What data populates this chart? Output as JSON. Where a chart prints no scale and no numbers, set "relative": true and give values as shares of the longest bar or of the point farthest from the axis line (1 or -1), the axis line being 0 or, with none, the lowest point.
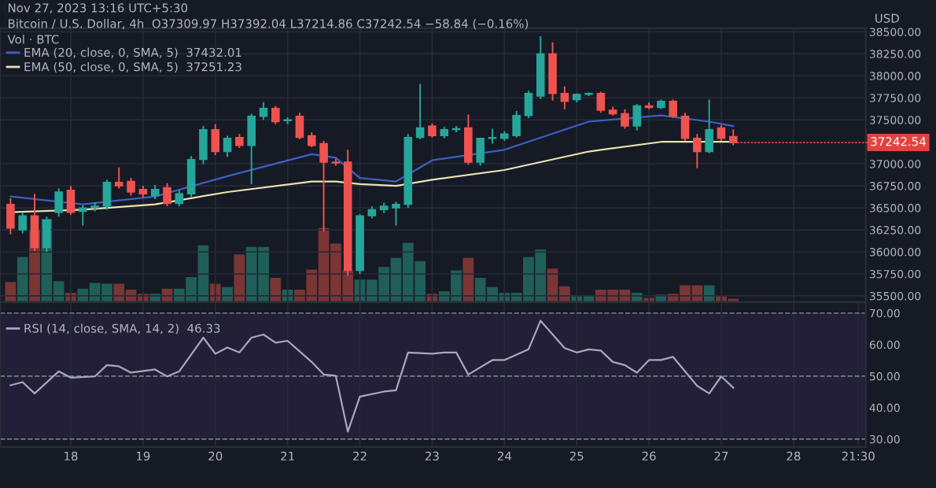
{
  "chart_data": [
    {
      "type": "candlestick",
      "ylabel": "USD",
      "tick_labels": "y",
      "grid": true,
      "legend": "top left",
      "annotations": [
        "Nov 27, 2023 13:16 UTC+5:30",
        "Bitcoin / U.S. Dollar, 4h  O37309.97 H37392.04 L37214.86 C37242.54 −58.84 (−0.16%)",
        "Vol · BTC",
        {
          "text": "37242.54",
          "x": "2023-11-27T04:00",
          "y": 37242.54
        }
      ],
      "xlim": [
        "2023-11-17T00:30",
        "2023-11-29T00:00"
      ],
      "xticks": [
        {
          "value": "2023-11-18",
          "label": null
        },
        {
          "value": "2023-11-19",
          "label": null
        },
        {
          "value": "2023-11-20",
          "label": null
        },
        {
          "value": "2023-11-21",
          "label": null
        },
        {
          "value": "2023-11-22",
          "label": null
        },
        {
          "value": "2023-11-23",
          "label": null
        },
        {
          "value": "2023-11-24",
          "label": null
        },
        {
          "value": "2023-11-25",
          "label": null
        },
        {
          "value": "2023-11-26",
          "label": null
        },
        {
          "value": "2023-11-27",
          "label": null
        },
        {
          "value": "2023-11-28",
          "label": null
        }
      ],
      "ylim": [
        35430,
        38540
      ],
      "yticks": [
        {
          "value": 35500,
          "label": "35500.00"
        },
        {
          "value": 35750,
          "label": "35750.00"
        },
        {
          "value": 36000,
          "label": "36000.00"
        },
        {
          "value": 36250,
          "label": "36250.00"
        },
        {
          "value": 36500,
          "label": "36500.00"
        },
        {
          "value": 36750,
          "label": "36750.00"
        },
        {
          "value": 37000,
          "label": "37000.00"
        },
        {
          "value": 37500,
          "label": "37500.00"
        },
        {
          "value": 37750,
          "label": "37750.00"
        },
        {
          "value": 38000,
          "label": "38000.00"
        },
        {
          "value": 38250,
          "label": "38250.00"
        },
        {
          "value": 38500,
          "label": "38500.00"
        }
      ],
      "x": [
        "2023-11-17T04:00",
        "2023-11-17T08:00",
        "2023-11-17T12:00",
        "2023-11-17T16:00",
        "2023-11-17T20:00",
        "2023-11-18T00:00",
        "2023-11-18T04:00",
        "2023-11-18T08:00",
        "2023-11-18T12:00",
        "2023-11-18T16:00",
        "2023-11-18T20:00",
        "2023-11-19T00:00",
        "2023-11-19T04:00",
        "2023-11-19T08:00",
        "2023-11-19T12:00",
        "2023-11-19T16:00",
        "2023-11-19T20:00",
        "2023-11-20T00:00",
        "2023-11-20T04:00",
        "2023-11-20T08:00",
        "2023-11-20T12:00",
        "2023-11-20T16:00",
        "2023-11-20T20:00",
        "2023-11-21T00:00",
        "2023-11-21T04:00",
        "2023-11-21T08:00",
        "2023-11-21T12:00",
        "2023-11-21T16:00",
        "2023-11-21T20:00",
        "2023-11-22T00:00",
        "2023-11-22T04:00",
        "2023-11-22T08:00",
        "2023-11-22T12:00",
        "2023-11-22T16:00",
        "2023-11-22T20:00",
        "2023-11-23T00:00",
        "2023-11-23T04:00",
        "2023-11-23T08:00",
        "2023-11-23T12:00",
        "2023-11-23T16:00",
        "2023-11-23T20:00",
        "2023-11-24T00:00",
        "2023-11-24T04:00",
        "2023-11-24T08:00",
        "2023-11-24T12:00",
        "2023-11-24T16:00",
        "2023-11-24T20:00",
        "2023-11-25T00:00",
        "2023-11-25T04:00",
        "2023-11-25T08:00",
        "2023-11-25T12:00",
        "2023-11-25T16:00",
        "2023-11-25T20:00",
        "2023-11-26T00:00",
        "2023-11-26T04:00",
        "2023-11-26T08:00",
        "2023-11-26T12:00",
        "2023-11-26T16:00",
        "2023-11-26T20:00",
        "2023-11-27T00:00",
        "2023-11-27T04:00"
      ],
      "ohlc": [
        [
          36540,
          36610,
          36200,
          36270
        ],
        [
          36250,
          36450,
          36210,
          36410
        ],
        [
          36410,
          36660,
          36010,
          36050
        ],
        [
          36050,
          36400,
          36000,
          36360
        ],
        [
          36450,
          36720,
          36400,
          36680
        ],
        [
          36700,
          36750,
          36420,
          36450
        ],
        [
          36460,
          36530,
          36300,
          36500
        ],
        [
          36500,
          36560,
          36460,
          36520
        ],
        [
          36520,
          36820,
          36480,
          36790
        ],
        [
          36790,
          36960,
          36720,
          36750
        ],
        [
          36800,
          36840,
          36640,
          36680
        ],
        [
          36710,
          36750,
          36620,
          36660
        ],
        [
          36640,
          36760,
          36600,
          36710
        ],
        [
          36730,
          36780,
          36520,
          36550
        ],
        [
          36550,
          36700,
          36520,
          36660
        ],
        [
          36660,
          37090,
          36620,
          37050
        ],
        [
          37050,
          37430,
          37000,
          37390
        ],
        [
          37390,
          37450,
          37100,
          37140
        ],
        [
          37140,
          37320,
          37080,
          37290
        ],
        [
          37300,
          37340,
          37180,
          37210
        ],
        [
          37210,
          37570,
          36770,
          37540
        ],
        [
          37540,
          37700,
          37500,
          37630
        ],
        [
          37630,
          37660,
          37450,
          37480
        ],
        [
          37490,
          37530,
          37450,
          37500
        ],
        [
          37540,
          37580,
          37280,
          37300
        ],
        [
          37320,
          37360,
          37190,
          37210
        ],
        [
          37230,
          37260,
          36230,
          37020
        ],
        [
          37020,
          37060,
          36980,
          37010
        ],
        [
          37020,
          37160,
          35730,
          35790
        ],
        [
          35790,
          36430,
          35750,
          36410
        ],
        [
          36410,
          36520,
          36380,
          36480
        ],
        [
          36480,
          36560,
          36440,
          36520
        ],
        [
          36500,
          36570,
          36300,
          36540
        ],
        [
          36540,
          37340,
          36500,
          37300
        ],
        [
          37300,
          37910,
          37280,
          37410
        ],
        [
          37430,
          37460,
          37300,
          37320
        ],
        [
          37320,
          37420,
          37290,
          37390
        ],
        [
          37390,
          37430,
          37360,
          37400
        ],
        [
          37410,
          37560,
          36990,
          37020
        ],
        [
          37020,
          37300,
          36980,
          37290
        ],
        [
          37290,
          37400,
          37230,
          37300
        ],
        [
          37290,
          37370,
          37260,
          37340
        ],
        [
          37320,
          37600,
          37300,
          37550
        ],
        [
          37550,
          37830,
          37520,
          37800
        ],
        [
          37770,
          38450,
          37740,
          38250
        ],
        [
          38250,
          38380,
          37720,
          37800
        ],
        [
          37800,
          37880,
          37620,
          37710
        ],
        [
          37730,
          37800,
          37700,
          37790
        ],
        [
          37790,
          37810,
          37770,
          37800
        ],
        [
          37800,
          37820,
          37580,
          37610
        ],
        [
          37610,
          37650,
          37550,
          37570
        ],
        [
          37570,
          37620,
          37400,
          37430
        ],
        [
          37430,
          37680,
          37380,
          37660
        ],
        [
          37660,
          37700,
          37620,
          37640
        ],
        [
          37640,
          37730,
          37620,
          37710
        ],
        [
          37710,
          37730,
          37520,
          37540
        ],
        [
          37540,
          37580,
          37260,
          37290
        ],
        [
          37290,
          37340,
          36950,
          37140
        ],
        [
          37140,
          37730,
          37120,
          37390
        ],
        [
          37410,
          37440,
          37260,
          37290
        ],
        [
          37310,
          37390,
          37210,
          37240
        ]
      ],
      "colors": [
        "#ef5350",
        "#26a69a",
        "#ef5350",
        "#26a69a",
        "#26a69a",
        "#ef5350",
        "#26a69a",
        "#26a69a",
        "#26a69a",
        "#ef5350",
        "#ef5350",
        "#ef5350",
        "#26a69a",
        "#ef5350",
        "#26a69a",
        "#26a69a",
        "#26a69a",
        "#ef5350",
        "#26a69a",
        "#ef5350",
        "#26a69a",
        "#26a69a",
        "#ef5350",
        "#26a69a",
        "#ef5350",
        "#ef5350",
        "#ef5350",
        "#ef5350",
        "#ef5350",
        "#26a69a",
        "#26a69a",
        "#26a69a",
        "#26a69a",
        "#26a69a",
        "#26a69a",
        "#ef5350",
        "#26a69a",
        "#26a69a",
        "#ef5350",
        "#26a69a",
        "#26a69a",
        "#26a69a",
        "#26a69a",
        "#26a69a",
        "#26a69a",
        "#ef5350",
        "#ef5350",
        "#26a69a",
        "#26a69a",
        "#ef5350",
        "#ef5350",
        "#ef5350",
        "#26a69a",
        "#ef5350",
        "#26a69a",
        "#ef5350",
        "#ef5350",
        "#ef5350",
        "#26a69a",
        "#ef5350",
        "#ef5350"
      ],
      "series": [
        {
          "type": "line",
          "name": "EMA (20, close, 0, SMA, 5)  37432.01",
          "color": "#3d5fc4",
          "x": [
            "2023-11-17T04:00",
            "2023-11-18T04:00",
            "2023-11-19T04:00",
            "2023-11-20T04:00",
            "2023-11-21T08:00",
            "2023-11-21T16:00",
            "2023-11-22T00:00",
            "2023-11-22T12:00",
            "2023-11-23T00:00",
            "2023-11-24T00:00",
            "2023-11-25T04:00",
            "2023-11-26T04:00",
            "2023-11-26T20:00",
            "2023-11-27T04:00"
          ],
          "values": [
            36630,
            36540,
            36630,
            36860,
            37110,
            37070,
            36840,
            36800,
            37040,
            37160,
            37480,
            37550,
            37480,
            37430
          ]
        },
        {
          "type": "line",
          "name": "EMA (50, close, 0, SMA, 5)  37251.23",
          "color": "#e8e3b0",
          "x": [
            "2023-11-17T04:00",
            "2023-11-18T04:00",
            "2023-11-19T04:00",
            "2023-11-20T04:00",
            "2023-11-21T08:00",
            "2023-11-21T16:00",
            "2023-11-22T00:00",
            "2023-11-22T12:00",
            "2023-11-23T00:00",
            "2023-11-24T00:00",
            "2023-11-25T04:00",
            "2023-11-26T04:00",
            "2023-11-27T04:00"
          ],
          "values": [
            36450,
            36480,
            36540,
            36680,
            36800,
            36800,
            36770,
            36750,
            36820,
            36930,
            37140,
            37250,
            37250
          ]
        }
      ]
    },
    {
      "type": "bar",
      "relative": true,
      "tick_labels": false,
      "xlim": [
        "2023-11-17T00:30",
        "2023-11-29T00:00"
      ],
      "x": [
        "2023-11-17T04:00",
        "2023-11-17T08:00",
        "2023-11-17T12:00",
        "2023-11-17T16:00",
        "2023-11-17T20:00",
        "2023-11-18T00:00",
        "2023-11-18T04:00",
        "2023-11-18T08:00",
        "2023-11-18T12:00",
        "2023-11-18T16:00",
        "2023-11-18T20:00",
        "2023-11-19T00:00",
        "2023-11-19T04:00",
        "2023-11-19T08:00",
        "2023-11-19T12:00",
        "2023-11-19T16:00",
        "2023-11-19T20:00",
        "2023-11-20T00:00",
        "2023-11-20T04:00",
        "2023-11-20T08:00",
        "2023-11-20T12:00",
        "2023-11-20T16:00",
        "2023-11-20T20:00",
        "2023-11-21T00:00",
        "2023-11-21T04:00",
        "2023-11-21T08:00",
        "2023-11-21T12:00",
        "2023-11-21T16:00",
        "2023-11-21T20:00",
        "2023-11-22T00:00",
        "2023-11-22T04:00",
        "2023-11-22T08:00",
        "2023-11-22T12:00",
        "2023-11-22T16:00",
        "2023-11-22T20:00",
        "2023-11-23T00:00",
        "2023-11-23T04:00",
        "2023-11-23T08:00",
        "2023-11-23T12:00",
        "2023-11-23T16:00",
        "2023-11-23T20:00",
        "2023-11-24T00:00",
        "2023-11-24T04:00",
        "2023-11-24T08:00",
        "2023-11-24T12:00",
        "2023-11-24T16:00",
        "2023-11-24T20:00",
        "2023-11-25T00:00",
        "2023-11-25T04:00",
        "2023-11-25T08:00",
        "2023-11-25T12:00",
        "2023-11-25T16:00",
        "2023-11-25T20:00",
        "2023-11-26T00:00",
        "2023-11-26T04:00",
        "2023-11-26T08:00",
        "2023-11-26T12:00",
        "2023-11-26T16:00",
        "2023-11-26T20:00",
        "2023-11-27T00:00",
        "2023-11-27T04:00"
      ],
      "values": [
        0.24,
        0.54,
        0.87,
        1,
        0.25,
        0.11,
        0.16,
        0.23,
        0.22,
        0.22,
        0.15,
        0.1,
        0.1,
        0.16,
        0.16,
        0.3,
        0.68,
        0.22,
        0.18,
        0.57,
        0.66,
        0.66,
        0.29,
        0.15,
        0.15,
        0.39,
        0.89,
        0.7,
        0.38,
        0.27,
        0.27,
        0.42,
        0.53,
        0.71,
        0.49,
        0.1,
        0.13,
        0.38,
        0.53,
        0.29,
        0.18,
        0.11,
        0.11,
        0.54,
        0.63,
        0.4,
        0.19,
        0.08,
        0.08,
        0.15,
        0.15,
        0.15,
        0.11,
        0.05,
        0.09,
        0.1,
        0.2,
        0.2,
        0.2,
        0.08,
        0.04
      ],
      "colors": [
        "#7a3535",
        "#1f5f58",
        "#7a3535",
        "#1f5f58",
        "#1f5f58",
        "#7a3535",
        "#1f5f58",
        "#1f5f58",
        "#1f5f58",
        "#7a3535",
        "#7a3535",
        "#7a3535",
        "#1f5f58",
        "#7a3535",
        "#1f5f58",
        "#1f5f58",
        "#1f5f58",
        "#7a3535",
        "#1f5f58",
        "#7a3535",
        "#1f5f58",
        "#1f5f58",
        "#7a3535",
        "#1f5f58",
        "#7a3535",
        "#7a3535",
        "#7a3535",
        "#7a3535",
        "#7a3535",
        "#1f5f58",
        "#1f5f58",
        "#1f5f58",
        "#1f5f58",
        "#1f5f58",
        "#1f5f58",
        "#7a3535",
        "#1f5f58",
        "#1f5f58",
        "#7a3535",
        "#1f5f58",
        "#1f5f58",
        "#1f5f58",
        "#1f5f58",
        "#1f5f58",
        "#1f5f58",
        "#7a3535",
        "#7a3535",
        "#1f5f58",
        "#1f5f58",
        "#7a3535",
        "#7a3535",
        "#7a3535",
        "#1f5f58",
        "#7a3535",
        "#1f5f58",
        "#7a3535",
        "#7a3535",
        "#7a3535",
        "#1f5f58",
        "#7a3535",
        "#7a3535"
      ]
    },
    {
      "type": "line",
      "grid": "x",
      "legend": "top left",
      "xlim": [
        "2023-11-17T00:30",
        "2023-11-29T00:00"
      ],
      "xticks": [
        {
          "value": "2023-11-18",
          "label": "18"
        },
        {
          "value": "2023-11-19",
          "label": "19"
        },
        {
          "value": "2023-11-20",
          "label": "20"
        },
        {
          "value": "2023-11-21",
          "label": "21"
        },
        {
          "value": "2023-11-22",
          "label": "22"
        },
        {
          "value": "2023-11-23",
          "label": "23"
        },
        {
          "value": "2023-11-24",
          "label": "24"
        },
        {
          "value": "2023-11-25",
          "label": "25"
        },
        {
          "value": "2023-11-26",
          "label": "26"
        },
        {
          "value": "2023-11-27",
          "label": "27"
        },
        {
          "value": "2023-11-28",
          "label": "28"
        },
        {
          "value": "2023-11-28T21:30",
          "label": "21:30"
        }
      ],
      "ylim": [
        27.5,
        73.5
      ],
      "yticks": [
        {
          "value": 30,
          "label": "30.00"
        },
        {
          "value": 40,
          "label": "40.00"
        },
        {
          "value": 50,
          "label": "50.00"
        },
        {
          "value": 60,
          "label": "60.00"
        },
        {
          "value": 70,
          "label": "70.00"
        }
      ],
      "bands": [
        {
          "axis": "y",
          "from": 30,
          "to": 70,
          "color": "#221f36"
        }
      ],
      "ref_lines": [
        {
          "axis": "y",
          "value": 70,
          "color": "#787b86",
          "line_style": "dashed"
        },
        {
          "axis": "y",
          "value": 50,
          "color": "#787b86",
          "line_style": "dashed"
        },
        {
          "axis": "y",
          "value": 30,
          "color": "#787b86",
          "line_style": "dashed"
        }
      ],
      "series": [
        {
          "name": "RSI (14, close, SMA, 14, 2)  46.33",
          "color": "#a9a6c4",
          "x": [
            "2023-11-17T04:00",
            "2023-11-17T08:00",
            "2023-11-17T12:00",
            "2023-11-17T20:00",
            "2023-11-18T00:00",
            "2023-11-18T08:00",
            "2023-11-18T12:00",
            "2023-11-18T16:00",
            "2023-11-18T20:00",
            "2023-11-19T04:00",
            "2023-11-19T08:00",
            "2023-11-19T12:00",
            "2023-11-19T20:00",
            "2023-11-20T00:00",
            "2023-11-20T04:00",
            "2023-11-20T08:00",
            "2023-11-20T12:00",
            "2023-11-20T16:00",
            "2023-11-20T20:00",
            "2023-11-21T00:00",
            "2023-11-21T08:00",
            "2023-11-21T12:00",
            "2023-11-21T16:00",
            "2023-11-21T20:00",
            "2023-11-22T00:00",
            "2023-11-22T08:00",
            "2023-11-22T12:00",
            "2023-11-22T16:00",
            "2023-11-23T00:00",
            "2023-11-23T04:00",
            "2023-11-23T08:00",
            "2023-11-23T12:00",
            "2023-11-23T20:00",
            "2023-11-24T00:00",
            "2023-11-24T08:00",
            "2023-11-24T12:00",
            "2023-11-24T20:00",
            "2023-11-25T00:00",
            "2023-11-25T04:00",
            "2023-11-25T08:00",
            "2023-11-25T12:00",
            "2023-11-25T16:00",
            "2023-11-25T20:00",
            "2023-11-26T00:00",
            "2023-11-26T04:00",
            "2023-11-26T08:00",
            "2023-11-26T16:00",
            "2023-11-26T20:00",
            "2023-11-27T00:00",
            "2023-11-27T04:00"
          ],
          "values": [
            47.1,
            48.1,
            44.5,
            51.5,
            49.5,
            49.9,
            53.5,
            53.1,
            51.1,
            52.1,
            49.9,
            51.5,
            62.2,
            57.1,
            59.1,
            57.5,
            62.2,
            63.2,
            60.6,
            61.2,
            54.5,
            50.5,
            50.1,
            32.4,
            43.5,
            45.1,
            45.5,
            57.5,
            57.1,
            57.5,
            57.5,
            50.5,
            55.1,
            55.1,
            58.5,
            67.6,
            58.9,
            57.5,
            58.5,
            58.1,
            54.5,
            53.5,
            51.1,
            55.1,
            55.1,
            56.1,
            46.9,
            44.5,
            49.9,
            46.3
          ]
        }
      ]
    }
  ]
}
